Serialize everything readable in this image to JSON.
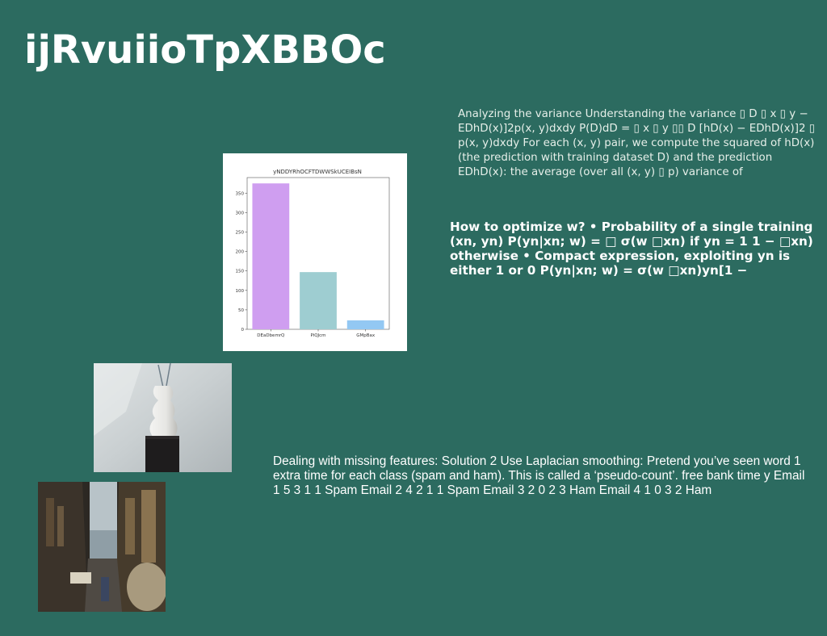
{
  "title": "ijRvuiioTpXBBOc",
  "text_blocks": {
    "variance": "Analyzing the variance Understanding the variance ▯ D ▯ x ▯ y − EDhD(x)]2p(x, y)dxdy P(D)dD = ▯ x ▯ y ▯▯ D [hD(x) − EDhD(x)]2 ▯ p(x, y)dxdy For each (x, y) pair, we compute the squared of hD(x) (the prediction with training dataset D) and the prediction EDhD(x): the average (over all (x, y) ▯ p) variance of",
    "optimize": "How to optimize w? • Probability of a single training (xn, yn) P(yn|xn; w) = □ σ(w □xn) if yn = 1 1 − □xn) otherwise • Compact expression, exploiting yn is either 1 or 0 P(yn|xn; w) = σ(w □xn)yn[1 −",
    "missing": "Dealing with missing features: Solution 2 Use Laplacian smoothing: Pretend you’ve seen word 1 extra time for each class (spam and ham). This is called a ‘pseudo-count’. free bank time y Email 1 5 3 1 1 Spam Email 2 4 2 1 1 Spam Email 3 2 0 2 3 Ham Email 4 1 0 3 2 Ham"
  },
  "chart_data": {
    "type": "bar",
    "title": "yNDDYRhOCFTDWWSkUCEIBsN",
    "categories": [
      "DEaDbemrQ",
      "PiQJcm",
      "GMpBax"
    ],
    "values": [
      375,
      147,
      23
    ],
    "colors": [
      "#cf9ef0",
      "#9ecdd1",
      "#93c8f3"
    ],
    "ylim": [
      0,
      390
    ],
    "yticks": [
      0,
      50,
      100,
      150,
      200,
      250,
      300,
      350
    ],
    "xlabel": "",
    "ylabel": "",
    "grid": false
  }
}
